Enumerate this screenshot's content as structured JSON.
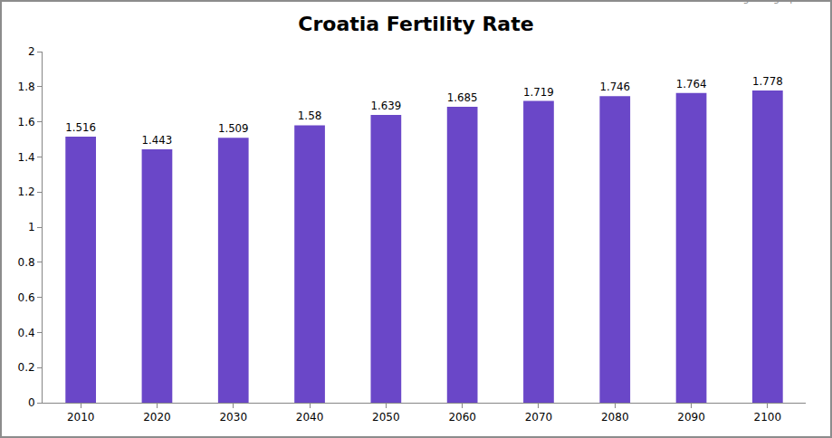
{
  "chart_data": {
    "type": "bar",
    "title": "Croatia Fertility Rate",
    "annotations": [
      "© theglobalgraph.com"
    ],
    "categories": [
      "2010",
      "2020",
      "2030",
      "2040",
      "2050",
      "2060",
      "2070",
      "2080",
      "2090",
      "2100"
    ],
    "values": [
      1.516,
      1.443,
      1.509,
      1.58,
      1.639,
      1.685,
      1.719,
      1.746,
      1.764,
      1.778
    ],
    "color": "#6a47c8",
    "ylim": [
      0,
      2
    ],
    "yticks": [
      0,
      0.2,
      0.4,
      0.6,
      0.8,
      1,
      1.2,
      1.4,
      1.6,
      1.8,
      2
    ],
    "grid": false,
    "data_labels": true
  }
}
